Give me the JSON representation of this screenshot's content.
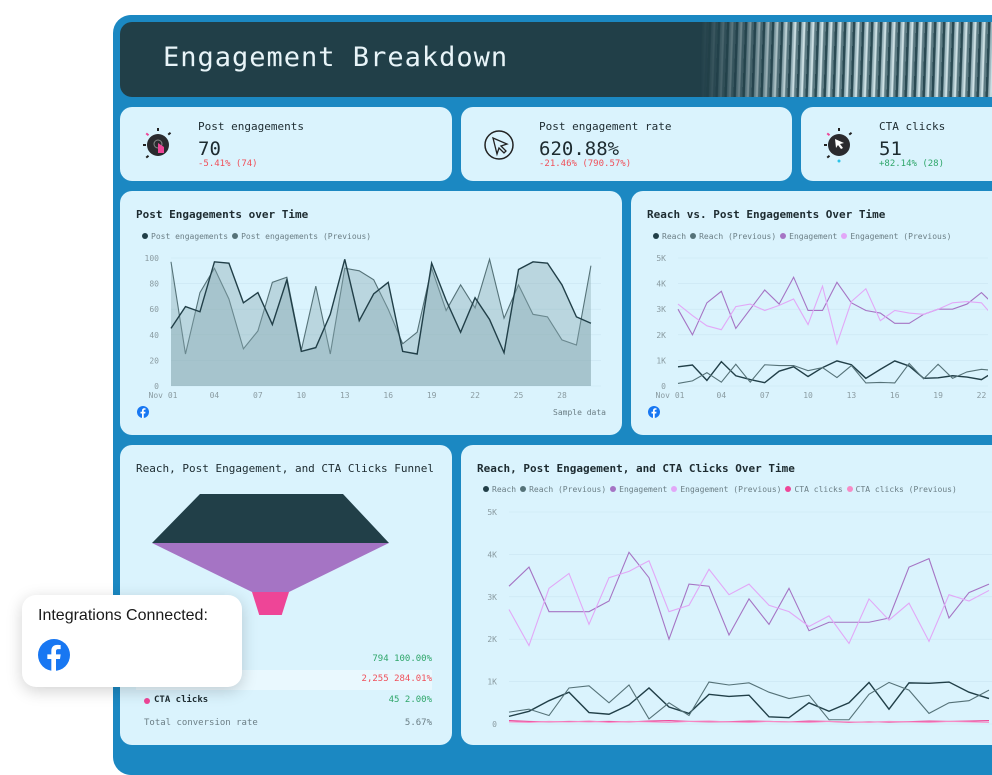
{
  "header": {
    "title": "Engagement Breakdown"
  },
  "colors": {
    "frame": "#1b88c2",
    "header": "#213f48",
    "card": "#daf3fd",
    "reach": "#213f48",
    "reach_prev": "#557278",
    "engagement": "#a574c4",
    "engagement_prev": "#e2a7f7",
    "cta": "#ee4597",
    "cta_prev": "#f78bc6",
    "positive": "#2fa66a",
    "negative": "#f0505a",
    "facebook": "#1877f2"
  },
  "kpis": [
    {
      "label": "Post engagements",
      "value": "70",
      "delta": "-5.41% (74)",
      "trend": "negative",
      "icon": "tap-hand-icon"
    },
    {
      "label": "Post engagement rate",
      "value": "620.88%",
      "delta": "-21.46% (790.57%)",
      "trend": "negative",
      "icon": "cursor-circle-icon"
    },
    {
      "label": "CTA clicks",
      "value": "51",
      "delta": "+82.14% (28)",
      "trend": "positive",
      "icon": "cursor-click-icon"
    }
  ],
  "chart_data": [
    {
      "type": "area",
      "title": "Post Engagements over Time",
      "ylim": [
        0,
        100
      ],
      "yticks": [
        "0",
        "20",
        "40",
        "60",
        "80",
        "100"
      ],
      "xticks": [
        "Nov 01",
        "04",
        "07",
        "10",
        "13",
        "16",
        "19",
        "22",
        "25",
        "28"
      ],
      "footer": "Sample data",
      "grid": true,
      "legend": "top-left",
      "series": [
        {
          "name": "Post engagements",
          "color": "#213f48",
          "values": [
            45,
            62,
            58,
            97,
            96,
            65,
            73,
            48,
            83,
            27,
            30,
            56,
            99,
            51,
            72,
            81,
            27,
            25,
            96,
            67,
            42,
            69,
            52,
            26,
            91,
            97,
            96,
            79,
            54,
            49
          ]
        },
        {
          "name": "Post engagements (Previous)",
          "color": "#557278",
          "values": [
            97,
            25,
            73,
            92,
            68,
            29,
            43,
            81,
            85,
            28,
            78,
            25,
            92,
            90,
            83,
            60,
            33,
            42,
            92,
            59,
            79,
            61,
            99,
            53,
            79,
            56,
            54,
            36,
            32,
            94
          ]
        }
      ]
    },
    {
      "type": "line",
      "title": "Reach vs. Post Engagements Over Time",
      "ylim": [
        0,
        5000
      ],
      "yticks": [
        "0",
        "1K",
        "2K",
        "3K",
        "4K",
        "5K"
      ],
      "xticks": [
        "Nov 01",
        "04",
        "07",
        "10",
        "13",
        "16",
        "19",
        "22"
      ],
      "grid": true,
      "legend": "top-left",
      "series": [
        {
          "name": "Reach",
          "color": "#213f48",
          "values": [
            750,
            820,
            220,
            950,
            400,
            250,
            130,
            580,
            750,
            370,
            720,
            980,
            830,
            300,
            650,
            980,
            780,
            300,
            320,
            400,
            350,
            250,
            600
          ]
        },
        {
          "name": "Reach (Previous)",
          "color": "#557278",
          "values": [
            100,
            200,
            520,
            150,
            850,
            150,
            830,
            800,
            800,
            600,
            720,
            330,
            800,
            120,
            140,
            120,
            880,
            280,
            850,
            300,
            550,
            650,
            600
          ]
        },
        {
          "name": "Engagement",
          "color": "#a574c4",
          "values": [
            3000,
            2000,
            3250,
            3700,
            2250,
            3000,
            3750,
            3200,
            4250,
            2950,
            2950,
            4050,
            3250,
            2950,
            2850,
            2450,
            2450,
            2800,
            3000,
            3000,
            3200,
            3650,
            3100
          ]
        },
        {
          "name": "Engagement (Previous)",
          "color": "#e2a7f7",
          "values": [
            3200,
            2750,
            2350,
            2200,
            3100,
            3200,
            2950,
            3150,
            3400,
            2400,
            3900,
            1650,
            3300,
            3800,
            2550,
            2950,
            2850,
            2800,
            3000,
            3250,
            3300,
            3250,
            2600
          ]
        }
      ]
    },
    {
      "type": "funnel",
      "title": "Reach, Post Engagement, and CTA Clicks Funnel",
      "stages": [
        {
          "label": "",
          "value": "794",
          "percent": "100.00%",
          "color": "#213f48",
          "trend": "positive"
        },
        {
          "label": "",
          "value": "2,255",
          "percent": "284.01%",
          "color": "#a574c4",
          "trend": "negative"
        },
        {
          "label": "CTA clicks",
          "value": "45",
          "percent": "2.00%",
          "color": "#ee4597",
          "trend": "positive"
        }
      ],
      "total_label": "Total conversion rate",
      "total_value": "5.67%"
    },
    {
      "type": "line",
      "title": "Reach, Post Engagement, and CTA Clicks Over Time",
      "ylim": [
        0,
        5000
      ],
      "yticks": [
        "0",
        "1K",
        "2K",
        "3K",
        "4K",
        "5K"
      ],
      "grid": true,
      "legend": "top-left",
      "series": [
        {
          "name": "Reach",
          "color": "#213f48",
          "values": [
            180,
            300,
            550,
            750,
            270,
            230,
            450,
            850,
            400,
            250,
            700,
            650,
            680,
            170,
            150,
            500,
            300,
            500,
            980,
            350,
            970,
            960,
            990,
            750,
            600
          ]
        },
        {
          "name": "Reach (Previous)",
          "color": "#557278",
          "values": [
            280,
            350,
            200,
            850,
            900,
            500,
            920,
            120,
            500,
            200,
            990,
            920,
            970,
            750,
            600,
            680,
            100,
            100,
            700,
            980,
            800,
            250,
            500,
            550,
            800
          ]
        },
        {
          "name": "Engagement",
          "color": "#a574c4",
          "values": [
            3250,
            3700,
            2650,
            2650,
            2650,
            2900,
            4050,
            3450,
            2000,
            3300,
            3250,
            2100,
            2950,
            2350,
            3200,
            2200,
            2400,
            2400,
            2400,
            2500,
            3700,
            3900,
            2500,
            3100,
            3300
          ]
        },
        {
          "name": "Engagement (Previous)",
          "color": "#e2a7f7",
          "values": [
            2700,
            1850,
            3200,
            3550,
            2350,
            3450,
            3600,
            3850,
            2650,
            2800,
            3650,
            3050,
            3300,
            2800,
            2650,
            2300,
            2550,
            1900,
            2950,
            2450,
            2850,
            1950,
            3050,
            2900,
            3150
          ]
        },
        {
          "name": "CTA clicks",
          "color": "#ee4597",
          "values": [
            80,
            60,
            50,
            60,
            55,
            60,
            50,
            70,
            80,
            60,
            50,
            55,
            70,
            60,
            50,
            70,
            60,
            40,
            50,
            45,
            55,
            70,
            60,
            70,
            80
          ]
        },
        {
          "name": "CTA clicks (Previous)",
          "color": "#f78bc6",
          "values": [
            50,
            40,
            60,
            50,
            70,
            40,
            60,
            50,
            40,
            60,
            70,
            50,
            40,
            60,
            50,
            40,
            60,
            50,
            40,
            60,
            50,
            40,
            60,
            50,
            40
          ]
        }
      ]
    }
  ],
  "popup": {
    "title": "Integrations Connected:",
    "integrations": [
      "facebook-icon"
    ]
  }
}
